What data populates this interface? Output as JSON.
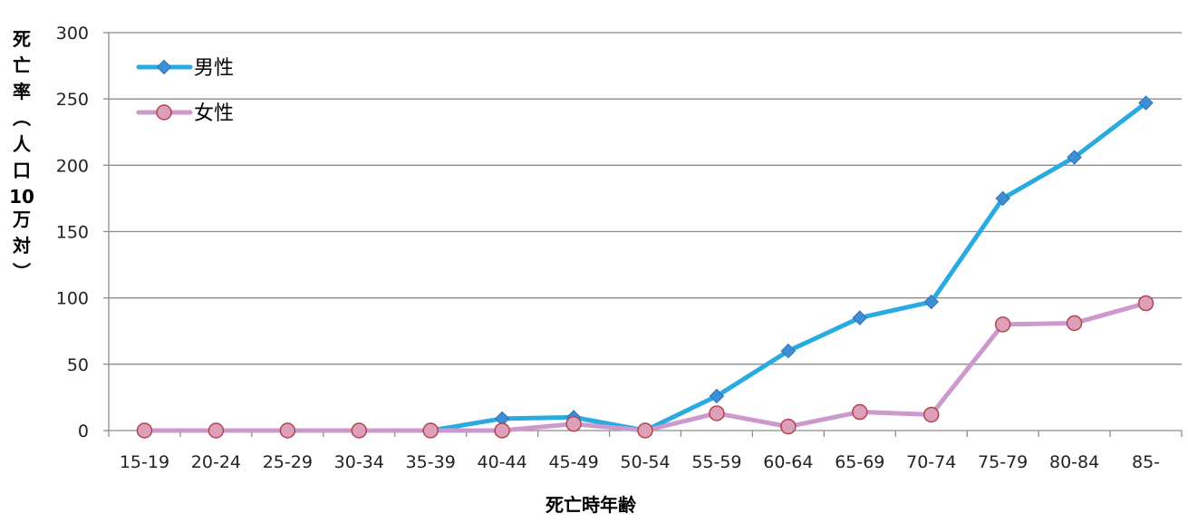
{
  "chart_data": {
    "type": "line",
    "categories": [
      "15-19",
      "20-24",
      "25-29",
      "30-34",
      "35-39",
      "40-44",
      "45-49",
      "50-54",
      "55-59",
      "60-64",
      "65-69",
      "70-74",
      "75-79",
      "80-84",
      "85-"
    ],
    "series": [
      {
        "name": "男性",
        "color": "#29ABE2",
        "marker": "diamond",
        "marker_color": "#3C8FD6",
        "values": [
          0,
          0,
          0,
          0,
          0,
          9,
          10,
          0,
          26,
          60,
          85,
          97,
          175,
          206,
          247
        ]
      },
      {
        "name": "女性",
        "color": "#CC99CC",
        "marker": "circle",
        "marker_color": "#DDA0B8",
        "values": [
          0,
          0,
          0,
          0,
          0,
          0,
          5,
          0,
          13,
          3,
          14,
          12,
          80,
          81,
          96
        ]
      }
    ],
    "title": "",
    "xlabel": "死亡時年齢",
    "ylabel": "死亡率（人口10万対）",
    "ylim": [
      0,
      300
    ],
    "yticks": [
      0,
      50,
      100,
      150,
      200,
      250,
      300
    ],
    "grid": true,
    "legend_position": "top-left"
  }
}
